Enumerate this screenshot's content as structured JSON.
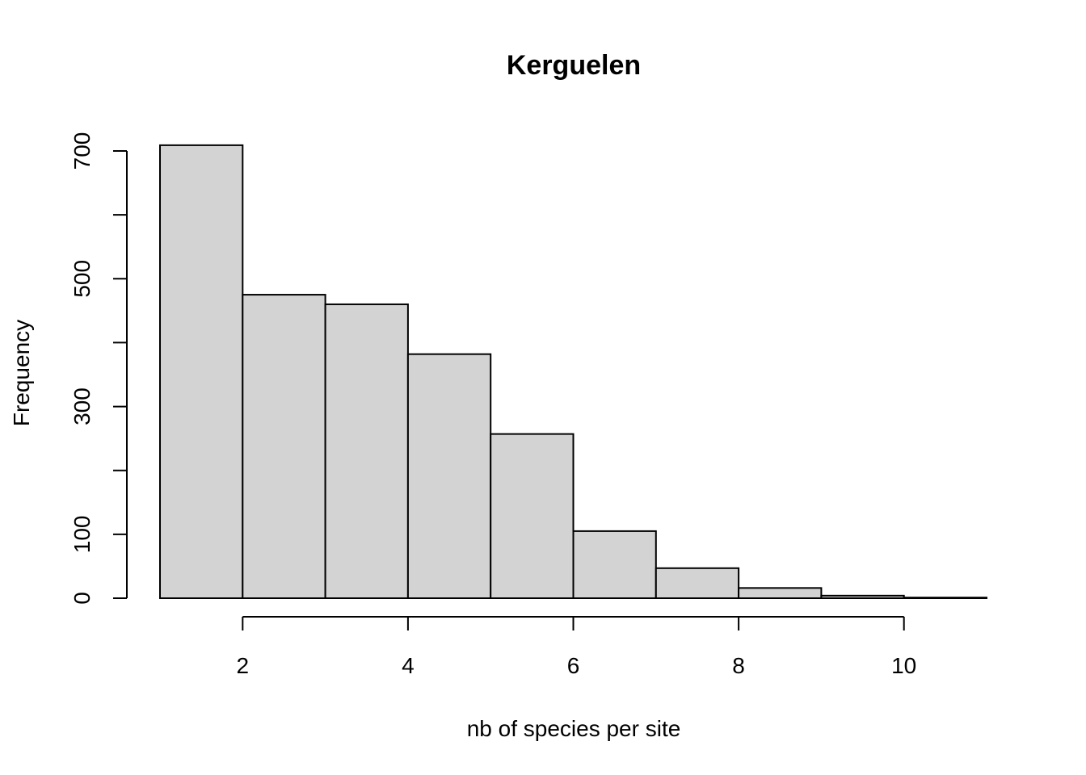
{
  "chart_data": {
    "type": "bar",
    "title": "Kerguelen",
    "xlabel": "nb of species per site",
    "ylabel": "Frequency",
    "bins": [
      {
        "start": 1,
        "end": 2,
        "count": 709
      },
      {
        "start": 2,
        "end": 3,
        "count": 475
      },
      {
        "start": 3,
        "end": 4,
        "count": 460
      },
      {
        "start": 4,
        "end": 5,
        "count": 382
      },
      {
        "start": 5,
        "end": 6,
        "count": 257
      },
      {
        "start": 6,
        "end": 7,
        "count": 105
      },
      {
        "start": 7,
        "end": 8,
        "count": 47
      },
      {
        "start": 8,
        "end": 9,
        "count": 16
      },
      {
        "start": 9,
        "end": 10,
        "count": 4
      },
      {
        "start": 10,
        "end": 11,
        "count": 1
      }
    ],
    "xlim": [
      1,
      11
    ],
    "ylim": [
      0,
      700
    ],
    "x_ticks": [
      2,
      4,
      6,
      8,
      10
    ],
    "y_ticks_labeled": [
      0,
      100,
      300,
      500,
      700
    ],
    "y_ticks": [
      0,
      100,
      200,
      300,
      400,
      500,
      600,
      700
    ],
    "bar_color": "#d3d3d3",
    "grid": false
  }
}
